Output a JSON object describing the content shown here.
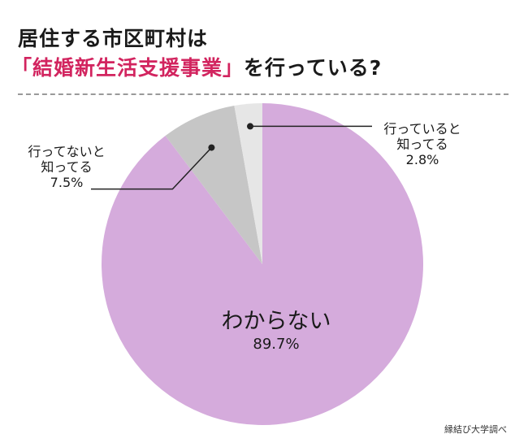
{
  "title": {
    "line1": "居住する市区町村は",
    "line2_highlight": "「結婚新生活支援事業」",
    "line2_rest": "を行っている?"
  },
  "chart_data": {
    "type": "pie",
    "slices": [
      {
        "label": "わからない",
        "value": 89.7,
        "value_label": "89.7%",
        "color": "#d5abdc"
      },
      {
        "label": "行ってないと知ってる",
        "label_lines": [
          "行ってないと",
          "知ってる"
        ],
        "value": 7.5,
        "value_label": "7.5%",
        "color": "#c6c6c6"
      },
      {
        "label": "行っていると知ってる",
        "label_lines": [
          "行っていると",
          "知ってる"
        ],
        "value": 2.8,
        "value_label": "2.8%",
        "color": "#e6e6e6"
      }
    ]
  },
  "source": "縁結び大学調べ"
}
